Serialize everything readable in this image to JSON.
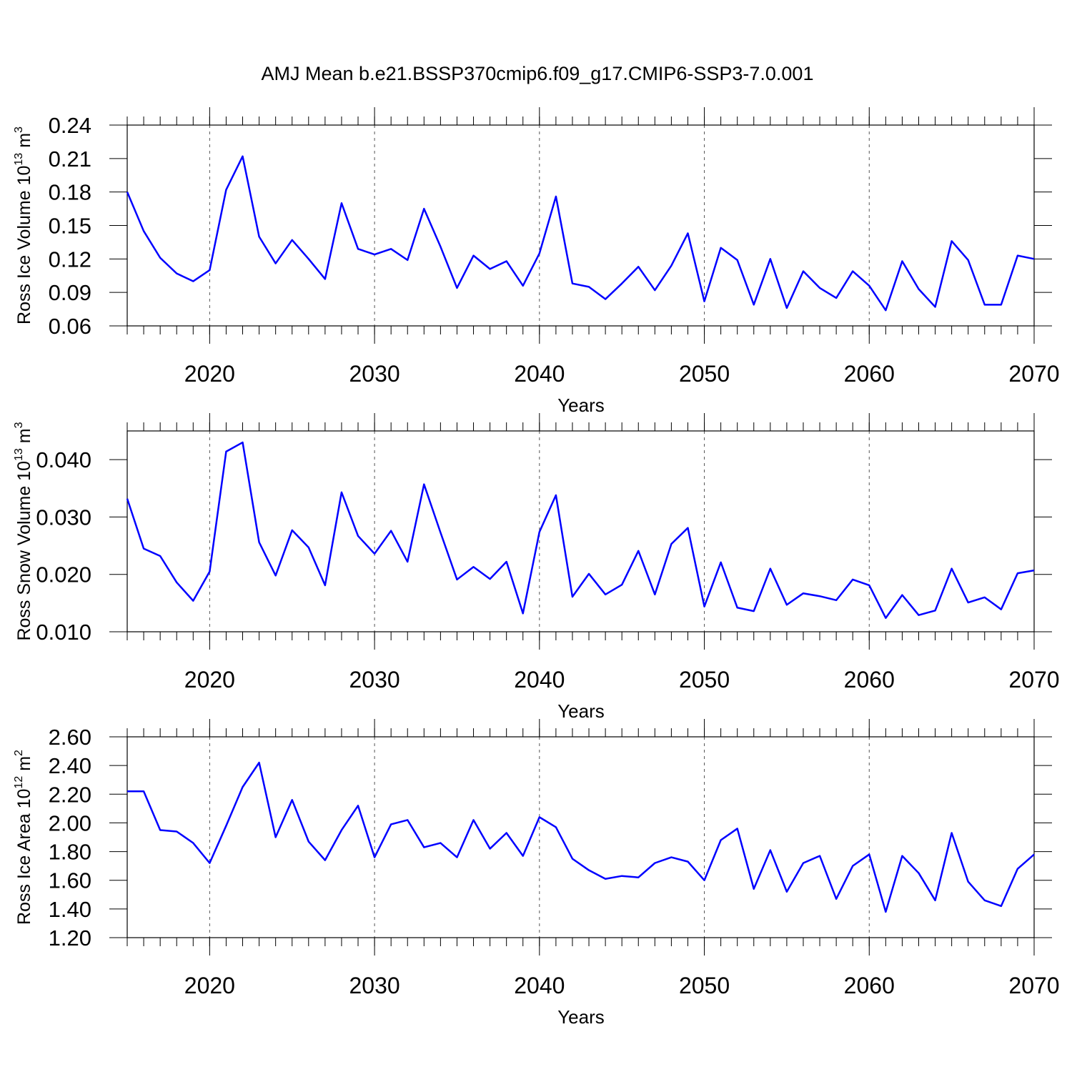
{
  "chart_data": [
    {
      "type": "line",
      "title": "AMJ Mean b.e21.BSSP370cmip6.f09_g17.CMIP6-SSP3-7.0.001",
      "xlabel": "Years",
      "ylabel_parts": [
        "Ross Ice Volume 10",
        "13",
        "m",
        "3"
      ],
      "x": [
        2015,
        2016,
        2017,
        2018,
        2019,
        2020,
        2021,
        2022,
        2023,
        2024,
        2025,
        2026,
        2027,
        2028,
        2029,
        2030,
        2031,
        2032,
        2033,
        2034,
        2035,
        2036,
        2037,
        2038,
        2039,
        2040,
        2041,
        2042,
        2043,
        2044,
        2045,
        2046,
        2047,
        2048,
        2049,
        2050,
        2051,
        2052,
        2053,
        2054,
        2055,
        2056,
        2057,
        2058,
        2059,
        2060,
        2061,
        2062,
        2063,
        2064,
        2065,
        2066,
        2067,
        2068,
        2069,
        2070
      ],
      "series": [
        {
          "color": "#0000ff",
          "values": [
            0.18,
            0.145,
            0.121,
            0.107,
            0.1,
            0.11,
            0.182,
            0.212,
            0.14,
            0.116,
            0.137,
            0.12,
            0.102,
            0.17,
            0.129,
            0.124,
            0.129,
            0.119,
            0.165,
            0.131,
            0.094,
            0.123,
            0.111,
            0.118,
            0.096,
            0.125,
            0.176,
            0.098,
            0.095,
            0.084,
            0.098,
            0.113,
            0.092,
            0.114,
            0.143,
            0.082,
            0.13,
            0.119,
            0.079,
            0.12,
            0.076,
            0.109,
            0.094,
            0.085,
            0.109,
            0.096,
            0.074,
            0.118,
            0.093,
            0.077,
            0.136,
            0.119,
            0.079,
            0.079,
            0.123,
            0.12
          ]
        }
      ],
      "xlim": [
        2015,
        2070
      ],
      "xticks": [
        2020,
        2030,
        2040,
        2050,
        2060,
        2070
      ],
      "ylim": [
        0.06,
        0.24
      ],
      "yticks": [
        0.06,
        0.09,
        0.12,
        0.15,
        0.18,
        0.21,
        0.24
      ],
      "grid": true
    },
    {
      "type": "line",
      "xlabel": "Years",
      "ylabel_parts": [
        "Ross Snow Volume 10",
        "13",
        "m",
        "3"
      ],
      "x": [
        2015,
        2016,
        2017,
        2018,
        2019,
        2020,
        2021,
        2022,
        2023,
        2024,
        2025,
        2026,
        2027,
        2028,
        2029,
        2030,
        2031,
        2032,
        2033,
        2034,
        2035,
        2036,
        2037,
        2038,
        2039,
        2040,
        2041,
        2042,
        2043,
        2044,
        2045,
        2046,
        2047,
        2048,
        2049,
        2050,
        2051,
        2052,
        2053,
        2054,
        2055,
        2056,
        2057,
        2058,
        2059,
        2060,
        2061,
        2062,
        2063,
        2064,
        2065,
        2066,
        2067,
        2068,
        2069,
        2070
      ],
      "series": [
        {
          "color": "#0000ff",
          "values": [
            0.0332,
            0.0245,
            0.0232,
            0.0186,
            0.0154,
            0.0205,
            0.0414,
            0.043,
            0.0256,
            0.0198,
            0.0277,
            0.0247,
            0.0181,
            0.0343,
            0.0267,
            0.0236,
            0.0276,
            0.0222,
            0.0357,
            0.0273,
            0.0191,
            0.0213,
            0.0192,
            0.0222,
            0.0132,
            0.0274,
            0.0338,
            0.0161,
            0.0201,
            0.0165,
            0.0182,
            0.0241,
            0.0165,
            0.0253,
            0.0281,
            0.0144,
            0.0221,
            0.0142,
            0.0136,
            0.021,
            0.0147,
            0.0167,
            0.0162,
            0.0155,
            0.0191,
            0.0181,
            0.0124,
            0.0164,
            0.0129,
            0.0137,
            0.021,
            0.0151,
            0.016,
            0.0139,
            0.0202,
            0.0207
          ]
        }
      ],
      "xlim": [
        2015,
        2070
      ],
      "xticks": [
        2020,
        2030,
        2040,
        2050,
        2060,
        2070
      ],
      "ylim": [
        0.01,
        0.045
      ],
      "yticks": [
        {
          "value": 0.01,
          "label": "0.010"
        },
        {
          "value": 0.02,
          "label": "0.020"
        },
        {
          "value": 0.03,
          "label": "0.030"
        },
        {
          "value": 0.04,
          "label": "0.040"
        }
      ],
      "grid": true
    },
    {
      "type": "line",
      "xlabel": "Years",
      "ylabel_parts": [
        "Ross Ice Area 10",
        "12",
        "m",
        "2"
      ],
      "x": [
        2015,
        2016,
        2017,
        2018,
        2019,
        2020,
        2021,
        2022,
        2023,
        2024,
        2025,
        2026,
        2027,
        2028,
        2029,
        2030,
        2031,
        2032,
        2033,
        2034,
        2035,
        2036,
        2037,
        2038,
        2039,
        2040,
        2041,
        2042,
        2043,
        2044,
        2045,
        2046,
        2047,
        2048,
        2049,
        2050,
        2051,
        2052,
        2053,
        2054,
        2055,
        2056,
        2057,
        2058,
        2059,
        2060,
        2061,
        2062,
        2063,
        2064,
        2065,
        2066,
        2067,
        2068,
        2069,
        2070
      ],
      "series": [
        {
          "color": "#0000ff",
          "values": [
            2.22,
            2.22,
            1.95,
            1.94,
            1.86,
            1.72,
            1.98,
            2.25,
            2.42,
            1.9,
            2.16,
            1.87,
            1.74,
            1.95,
            2.12,
            1.76,
            1.99,
            2.02,
            1.83,
            1.86,
            1.76,
            2.02,
            1.82,
            1.93,
            1.77,
            2.04,
            1.97,
            1.75,
            1.67,
            1.61,
            1.63,
            1.62,
            1.72,
            1.76,
            1.73,
            1.6,
            1.88,
            1.96,
            1.54,
            1.81,
            1.52,
            1.72,
            1.77,
            1.47,
            1.7,
            1.78,
            1.38,
            1.77,
            1.65,
            1.46,
            1.93,
            1.59,
            1.46,
            1.42,
            1.68,
            1.78
          ]
        }
      ],
      "xlim": [
        2015,
        2070
      ],
      "xticks": [
        2020,
        2030,
        2040,
        2050,
        2060,
        2070
      ],
      "ylim": [
        1.2,
        2.6
      ],
      "yticks": [
        {
          "value": 1.2,
          "label": "1.20"
        },
        {
          "value": 1.4,
          "label": "1.40"
        },
        {
          "value": 1.6,
          "label": "1.60"
        },
        {
          "value": 1.8,
          "label": "1.80"
        },
        {
          "value": 2.0,
          "label": "2.00"
        },
        {
          "value": 2.2,
          "label": "2.20"
        },
        {
          "value": 2.4,
          "label": "2.40"
        },
        {
          "value": 2.6,
          "label": "2.60"
        }
      ],
      "grid": true
    }
  ]
}
